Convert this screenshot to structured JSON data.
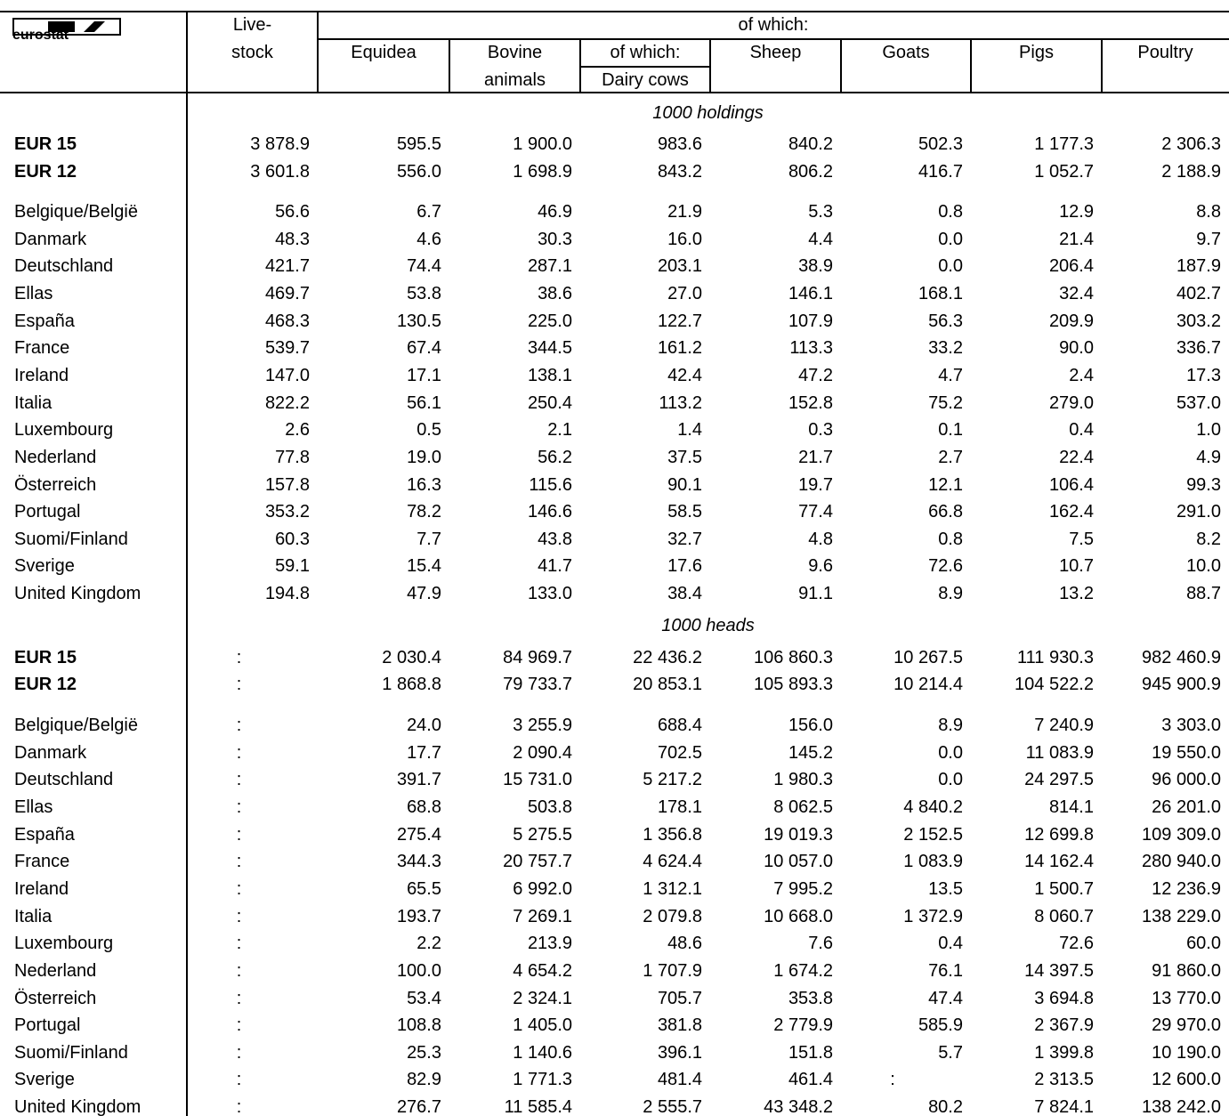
{
  "header": {
    "logo": "eurostat",
    "livestock": [
      "Live-",
      "stock"
    ],
    "of_which": "of which:",
    "columns": [
      [
        "Equidea"
      ],
      [
        "Bovine",
        "animals"
      ],
      [
        "of which:",
        "Dairy cows"
      ],
      [
        "Sheep"
      ],
      [
        "Goats"
      ],
      [
        "Pigs"
      ],
      [
        "Poultry"
      ]
    ]
  },
  "sections": [
    {
      "label": "1000 holdings",
      "totals": [
        {
          "name": "EUR 15",
          "values": [
            "3 878.9",
            "595.5",
            "1 900.0",
            "983.6",
            "840.2",
            "502.3",
            "1 177.3",
            "2 306.3"
          ]
        },
        {
          "name": "EUR 12",
          "values": [
            "3 601.8",
            "556.0",
            "1 698.9",
            "843.2",
            "806.2",
            "416.7",
            "1 052.7",
            "2 188.9"
          ]
        }
      ],
      "rows": [
        {
          "name": "Belgique/België",
          "values": [
            "56.6",
            "6.7",
            "46.9",
            "21.9",
            "5.3",
            "0.8",
            "12.9",
            "8.8"
          ]
        },
        {
          "name": "Danmark",
          "values": [
            "48.3",
            "4.6",
            "30.3",
            "16.0",
            "4.4",
            "0.0",
            "21.4",
            "9.7"
          ]
        },
        {
          "name": "Deutschland",
          "values": [
            "421.7",
            "74.4",
            "287.1",
            "203.1",
            "38.9",
            "0.0",
            "206.4",
            "187.9"
          ]
        },
        {
          "name": "Ellas",
          "values": [
            "469.7",
            "53.8",
            "38.6",
            "27.0",
            "146.1",
            "168.1",
            "32.4",
            "402.7"
          ]
        },
        {
          "name": "España",
          "values": [
            "468.3",
            "130.5",
            "225.0",
            "122.7",
            "107.9",
            "56.3",
            "209.9",
            "303.2"
          ]
        },
        {
          "name": "France",
          "values": [
            "539.7",
            "67.4",
            "344.5",
            "161.2",
            "113.3",
            "33.2",
            "90.0",
            "336.7"
          ]
        },
        {
          "name": "Ireland",
          "values": [
            "147.0",
            "17.1",
            "138.1",
            "42.4",
            "47.2",
            "4.7",
            "2.4",
            "17.3"
          ]
        },
        {
          "name": "Italia",
          "values": [
            "822.2",
            "56.1",
            "250.4",
            "113.2",
            "152.8",
            "75.2",
            "279.0",
            "537.0"
          ]
        },
        {
          "name": "Luxembourg",
          "values": [
            "2.6",
            "0.5",
            "2.1",
            "1.4",
            "0.3",
            "0.1",
            "0.4",
            "1.0"
          ]
        },
        {
          "name": "Nederland",
          "values": [
            "77.8",
            "19.0",
            "56.2",
            "37.5",
            "21.7",
            "2.7",
            "22.4",
            "4.9"
          ]
        },
        {
          "name": "Österreich",
          "values": [
            "157.8",
            "16.3",
            "115.6",
            "90.1",
            "19.7",
            "12.1",
            "106.4",
            "99.3"
          ]
        },
        {
          "name": "Portugal",
          "values": [
            "353.2",
            "78.2",
            "146.6",
            "58.5",
            "77.4",
            "66.8",
            "162.4",
            "291.0"
          ]
        },
        {
          "name": "Suomi/Finland",
          "values": [
            "60.3",
            "7.7",
            "43.8",
            "32.7",
            "4.8",
            "0.8",
            "7.5",
            "8.2"
          ]
        },
        {
          "name": "Sverige",
          "values": [
            "59.1",
            "15.4",
            "41.7",
            "17.6",
            "9.6",
            "72.6",
            "10.7",
            "10.0"
          ]
        },
        {
          "name": "United Kingdom",
          "values": [
            "194.8",
            "47.9",
            "133.0",
            "38.4",
            "91.1",
            "8.9",
            "13.2",
            "88.7"
          ]
        }
      ]
    },
    {
      "label": "1000 heads",
      "totals": [
        {
          "name": "EUR 15",
          "values": [
            ":",
            "2 030.4",
            "84 969.7",
            "22 436.2",
            "106 860.3",
            "10 267.5",
            "111 930.3",
            "982 460.9"
          ]
        },
        {
          "name": "EUR 12",
          "values": [
            ":",
            "1 868.8",
            "79 733.7",
            "20 853.1",
            "105 893.3",
            "10 214.4",
            "104 522.2",
            "945 900.9"
          ]
        }
      ],
      "rows": [
        {
          "name": "Belgique/België",
          "values": [
            ":",
            "24.0",
            "3 255.9",
            "688.4",
            "156.0",
            "8.9",
            "7 240.9",
            "3 303.0"
          ]
        },
        {
          "name": "Danmark",
          "values": [
            ":",
            "17.7",
            "2 090.4",
            "702.5",
            "145.2",
            "0.0",
            "11 083.9",
            "19 550.0"
          ]
        },
        {
          "name": "Deutschland",
          "values": [
            ":",
            "391.7",
            "15 731.0",
            "5 217.2",
            "1 980.3",
            "0.0",
            "24 297.5",
            "96 000.0"
          ]
        },
        {
          "name": "Ellas",
          "values": [
            ":",
            "68.8",
            "503.8",
            "178.1",
            "8 062.5",
            "4 840.2",
            "814.1",
            "26 201.0"
          ]
        },
        {
          "name": "España",
          "values": [
            ":",
            "275.4",
            "5 275.5",
            "1 356.8",
            "19 019.3",
            "2 152.5",
            "12 699.8",
            "109 309.0"
          ]
        },
        {
          "name": "France",
          "values": [
            ":",
            "344.3",
            "20 757.7",
            "4 624.4",
            "10 057.0",
            "1 083.9",
            "14 162.4",
            "280 940.0"
          ]
        },
        {
          "name": "Ireland",
          "values": [
            ":",
            "65.5",
            "6 992.0",
            "1 312.1",
            "7 995.2",
            "13.5",
            "1 500.7",
            "12 236.9"
          ]
        },
        {
          "name": "Italia",
          "values": [
            ":",
            "193.7",
            "7 269.1",
            "2 079.8",
            "10 668.0",
            "1 372.9",
            "8 060.7",
            "138 229.0"
          ]
        },
        {
          "name": "Luxembourg",
          "values": [
            ":",
            "2.2",
            "213.9",
            "48.6",
            "7.6",
            "0.4",
            "72.6",
            "60.0"
          ]
        },
        {
          "name": "Nederland",
          "values": [
            ":",
            "100.0",
            "4 654.2",
            "1 707.9",
            "1 674.2",
            "76.1",
            "14 397.5",
            "91 860.0"
          ]
        },
        {
          "name": "Österreich",
          "values": [
            ":",
            "53.4",
            "2 324.1",
            "705.7",
            "353.8",
            "47.4",
            "3 694.8",
            "13 770.0"
          ]
        },
        {
          "name": "Portugal",
          "values": [
            ":",
            "108.8",
            "1 405.0",
            "381.8",
            "2 779.9",
            "585.9",
            "2 367.9",
            "29 970.0"
          ]
        },
        {
          "name": "Suomi/Finland",
          "values": [
            ":",
            "25.3",
            "1 140.6",
            "396.1",
            "151.8",
            "5.7",
            "1 399.8",
            "10 190.0"
          ]
        },
        {
          "name": "Sverige",
          "values": [
            ":",
            "82.9",
            "1 771.3",
            "481.4",
            "461.4",
            ":",
            "2 313.5",
            "12 600.0"
          ]
        },
        {
          "name": "United Kingdom",
          "values": [
            ":",
            "276.7",
            "11 585.4",
            "2 555.7",
            "43 348.2",
            "80.2",
            "7 824.1",
            "138 242.0"
          ]
        }
      ]
    }
  ]
}
